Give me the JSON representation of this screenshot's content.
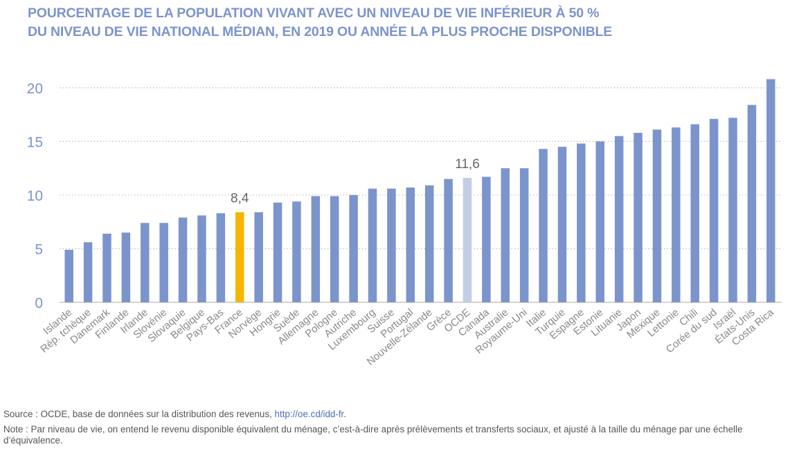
{
  "title": {
    "line1": "POURCENTAGE DE LA POPULATION VIVANT AVEC UN NIVEAU DE VIE INFÉRIEUR À 50 %",
    "line2": "DU NIVEAU DE VIE NATIONAL MÉDIAN, EN 2019 OU ANNÉE LA PLUS PROCHE DISPONIBLE"
  },
  "colors": {
    "bar": "#7b94cc",
    "highlight_france": "#f7b500",
    "highlight_oecd": "#c2cde6",
    "axis_text": "#7b94cc",
    "category_text": "#888888",
    "label_text": "#666666",
    "grid": "#bbbbbb"
  },
  "chart_data": {
    "type": "bar",
    "categories": [
      "Islande",
      "Rép. tchèque",
      "Danemark",
      "Finlande",
      "Irlande",
      "Slovénie",
      "Slovaquie",
      "Belgique",
      "Pays-Bas",
      "France",
      "Norvège",
      "Hongrie",
      "Suède",
      "Allemagne",
      "Pologne",
      "Autriche",
      "Luxembourg",
      "Suisse",
      "Portugal",
      "Nouvelle-Zélande",
      "Grèce",
      "OCDE",
      "Canada",
      "Australie",
      "Royaume-Uni",
      "Italie",
      "Turquie",
      "Espagne",
      "Estonie",
      "Lituanie",
      "Japon",
      "Mexique",
      "Lettonie",
      "Chili",
      "Corée du sud",
      "Israël",
      "États-Unis",
      "Costa Rica"
    ],
    "values": [
      4.9,
      5.6,
      6.4,
      6.5,
      7.4,
      7.4,
      7.9,
      8.1,
      8.3,
      8.4,
      8.4,
      9.3,
      9.4,
      9.9,
      9.9,
      10.0,
      10.6,
      10.6,
      10.7,
      10.9,
      11.5,
      11.6,
      11.7,
      12.5,
      12.5,
      14.3,
      14.5,
      14.8,
      15.0,
      15.5,
      15.8,
      16.1,
      16.3,
      16.6,
      17.1,
      17.2,
      18.4,
      20.8
    ],
    "highlights": {
      "France": "highlight_france",
      "OCDE": "highlight_oecd"
    },
    "data_labels": {
      "France": "8,4",
      "OCDE": "11,6"
    },
    "yticks": [
      0,
      5,
      10,
      15,
      20
    ],
    "ylim": [
      0,
      22.7
    ],
    "grid": true,
    "grid_style": "dotted",
    "xlabel": "",
    "ylabel": ""
  },
  "footer": {
    "source_prefix": "Source : OCDE, base de données sur la distribution des revenus, ",
    "source_link": "http://oe.cd/idd-fr",
    "source_suffix": ".",
    "note": "Note : Par niveau de vie, on entend le revenu disponible équivalent du ménage, c’est-à-dire après prélèvements et transferts sociaux, et ajusté à la taille du ménage par une échelle d’équivalence."
  }
}
